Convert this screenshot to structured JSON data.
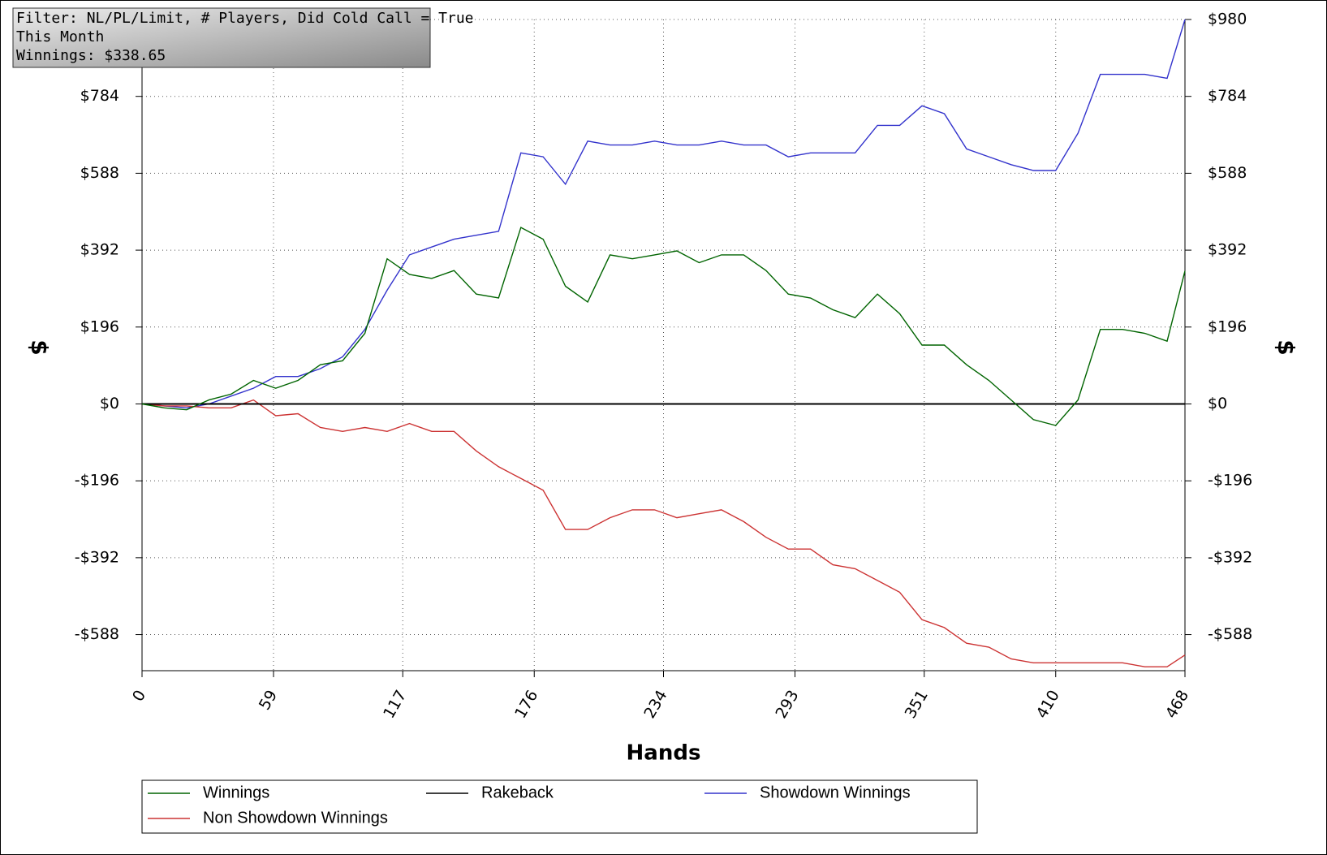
{
  "chart_data": {
    "type": "line",
    "info": [
      "Filter: NL/PL/Limit, # Players, Did Cold Call = True",
      "This Month",
      "Winnings: $338.65"
    ],
    "xlabel": "Hands",
    "ylabel": "$",
    "y2label": "$",
    "x": [
      0,
      10,
      20,
      30,
      40,
      50,
      60,
      70,
      80,
      90,
      100,
      110,
      120,
      130,
      140,
      150,
      160,
      170,
      180,
      190,
      200,
      210,
      220,
      230,
      240,
      250,
      260,
      270,
      280,
      290,
      300,
      310,
      320,
      330,
      340,
      350,
      360,
      370,
      380,
      390,
      400,
      410,
      420,
      430,
      440,
      450,
      460,
      468
    ],
    "series": [
      {
        "name": "Winnings",
        "color": "#006400",
        "values": [
          0,
          -10,
          -15,
          10,
          25,
          60,
          40,
          60,
          100,
          110,
          180,
          370,
          330,
          320,
          340,
          280,
          270,
          450,
          420,
          300,
          260,
          380,
          370,
          380,
          390,
          360,
          380,
          380,
          340,
          280,
          270,
          240,
          220,
          280,
          230,
          150,
          150,
          100,
          60,
          10,
          -40,
          -55,
          10,
          190,
          190,
          180,
          160,
          339
        ]
      },
      {
        "name": "Rakeback",
        "color": "#000000",
        "values": [
          0,
          0,
          0,
          0,
          0,
          0,
          0,
          0,
          0,
          0,
          0,
          0,
          0,
          0,
          0,
          0,
          0,
          0,
          0,
          0,
          0,
          0,
          0,
          0,
          0,
          0,
          0,
          0,
          0,
          0,
          0,
          0,
          0,
          0,
          0,
          0,
          0,
          0,
          0,
          0,
          0,
          0,
          0,
          0,
          0,
          0,
          0,
          0
        ]
      },
      {
        "name": "Showdown Winnings",
        "color": "#3333cc",
        "values": [
          0,
          -5,
          -10,
          0,
          20,
          40,
          70,
          70,
          90,
          120,
          190,
          290,
          380,
          400,
          420,
          430,
          440,
          640,
          630,
          560,
          670,
          660,
          660,
          670,
          660,
          660,
          670,
          660,
          660,
          630,
          640,
          640,
          640,
          710,
          710,
          760,
          740,
          650,
          630,
          610,
          595,
          595,
          690,
          840,
          840,
          840,
          830,
          980
        ]
      },
      {
        "name": "Non Showdown Winnings",
        "color": "#cc3333",
        "values": [
          0,
          -5,
          -5,
          -10,
          -10,
          10,
          -30,
          -25,
          -60,
          -70,
          -60,
          -70,
          -50,
          -70,
          -70,
          -120,
          -160,
          -190,
          -220,
          -320,
          -320,
          -290,
          -270,
          -270,
          -290,
          -280,
          -270,
          -300,
          -340,
          -370,
          -370,
          -410,
          -420,
          -450,
          -480,
          -550,
          -570,
          -610,
          -620,
          -650,
          -660,
          -660,
          -660,
          -660,
          -660,
          -670,
          -670,
          -640
        ]
      }
    ],
    "xlim": [
      0,
      468
    ],
    "xticks": [
      0,
      59,
      117,
      176,
      234,
      293,
      351,
      410,
      468
    ],
    "ylim": [
      -680,
      980
    ],
    "yticks": [
      {
        "value": -588,
        "label": "-$588"
      },
      {
        "value": -392,
        "label": "-$392"
      },
      {
        "value": -196,
        "label": "-$196"
      },
      {
        "value": 0,
        "label": "$0"
      },
      {
        "value": 196,
        "label": "$196"
      },
      {
        "value": 392,
        "label": "$392"
      },
      {
        "value": 588,
        "label": "$588"
      },
      {
        "value": 784,
        "label": "$784"
      },
      {
        "value": 980,
        "label": "$980"
      }
    ],
    "y2lim": [
      -680,
      980
    ],
    "y2ticks": [
      {
        "value": -588,
        "label": "-$588"
      },
      {
        "value": -392,
        "label": "-$392"
      },
      {
        "value": -196,
        "label": "-$196"
      },
      {
        "value": 0,
        "label": "$0"
      },
      {
        "value": 196,
        "label": "$196"
      },
      {
        "value": 392,
        "label": "$392"
      },
      {
        "value": 588,
        "label": "$588"
      },
      {
        "value": 784,
        "label": "$784"
      },
      {
        "value": 980,
        "label": "$980"
      }
    ],
    "grid": true,
    "legend": "bottom"
  }
}
